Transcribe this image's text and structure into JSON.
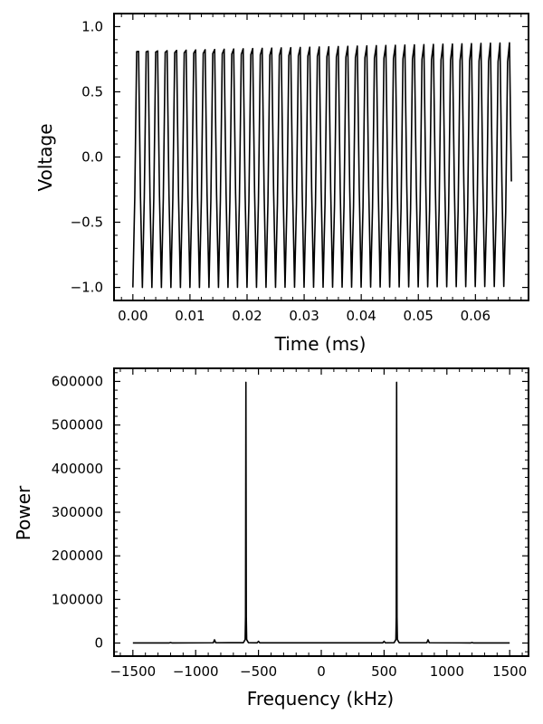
{
  "chart_data": [
    {
      "type": "line",
      "xlabel": "Time (ms)",
      "ylabel": "Voltage",
      "xlim": [
        -0.0033,
        0.0693
      ],
      "ylim": [
        -1.1,
        1.1
      ],
      "xticks": [
        0.0,
        0.01,
        0.02,
        0.03,
        0.04,
        0.05,
        0.06
      ],
      "xtick_labels": [
        "0.00",
        "0.01",
        "0.02",
        "0.03",
        "0.04",
        "0.05",
        "0.06"
      ],
      "yticks": [
        -1.0,
        -0.5,
        0.0,
        0.5,
        1.0
      ],
      "ytick_labels": [
        "−1.0",
        "−0.5",
        "0.0",
        "0.5",
        "1.0"
      ],
      "grid": false,
      "series": [
        {
          "color": "#000000",
          "signal": {
            "frequency_khz": 600,
            "amplitude": 1.0,
            "phase": "starts at -1.0",
            "t_start_ms": 0.0,
            "t_end_ms": 0.0663,
            "samples": 200
          }
        }
      ]
    },
    {
      "type": "line",
      "xlabel": "Frequency (kHz)",
      "ylabel": "Power",
      "xlim": [
        -1650,
        1650
      ],
      "ylim": [
        -30000,
        630000
      ],
      "xticks": [
        -1500,
        -1000,
        -500,
        0,
        500,
        1000,
        1500
      ],
      "xtick_labels": [
        "−1500",
        "−1000",
        "−500",
        "0",
        "500",
        "1000",
        "1500"
      ],
      "yticks": [
        0,
        100000,
        200000,
        300000,
        400000,
        500000,
        600000
      ],
      "ytick_labels": [
        "0",
        "100000",
        "200000",
        "300000",
        "400000",
        "500000",
        "600000"
      ],
      "grid": false,
      "series": [
        {
          "color": "#000000",
          "x": [
            -1500,
            -1210,
            -1200,
            -1190,
            -860,
            -850,
            -840,
            -620,
            -606,
            -603,
            -600,
            -597,
            -594,
            -580,
            -510,
            -500,
            -490,
            490,
            500,
            510,
            580,
            594,
            597,
            600,
            603,
            606,
            620,
            840,
            850,
            860,
            1190,
            1200,
            1210,
            1500
          ],
          "y": [
            200,
            300,
            1200,
            300,
            600,
            7500,
            600,
            800,
            8000,
            60000,
            598000,
            60000,
            8000,
            800,
            500,
            4000,
            500,
            500,
            4000,
            500,
            800,
            8000,
            60000,
            598000,
            60000,
            8000,
            800,
            600,
            7500,
            600,
            300,
            1200,
            300,
            200
          ]
        }
      ]
    }
  ]
}
